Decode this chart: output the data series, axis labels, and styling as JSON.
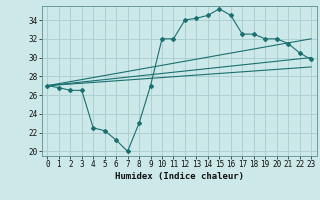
{
  "xlabel": "Humidex (Indice chaleur)",
  "bg_color": "#cce8e8",
  "grid_color": "#aacccc",
  "line_color": "#1a7070",
  "xlim": [
    -0.5,
    23.5
  ],
  "ylim": [
    19.5,
    35.5
  ],
  "yticks": [
    20,
    22,
    24,
    26,
    28,
    30,
    32,
    34
  ],
  "xticks": [
    0,
    1,
    2,
    3,
    4,
    5,
    6,
    7,
    8,
    9,
    10,
    11,
    12,
    13,
    14,
    15,
    16,
    17,
    18,
    19,
    20,
    21,
    22,
    23
  ],
  "line1_x": [
    0,
    1,
    2,
    3,
    4,
    5,
    6,
    7,
    8,
    9,
    10,
    11,
    12,
    13,
    14,
    15,
    16,
    17,
    18,
    19,
    20,
    21,
    22,
    23
  ],
  "line1_y": [
    27.0,
    26.8,
    26.5,
    26.5,
    22.5,
    22.2,
    21.2,
    20.0,
    23.0,
    27.0,
    32.0,
    32.0,
    34.0,
    34.2,
    34.5,
    35.2,
    34.5,
    32.5,
    32.5,
    32.0,
    32.0,
    31.5,
    30.5,
    29.8
  ],
  "line2_x": [
    0,
    23
  ],
  "line2_y": [
    27.0,
    32.0
  ],
  "line3_x": [
    0,
    23
  ],
  "line3_y": [
    27.0,
    30.0
  ],
  "line4_x": [
    0,
    23
  ],
  "line4_y": [
    27.0,
    29.0
  ]
}
